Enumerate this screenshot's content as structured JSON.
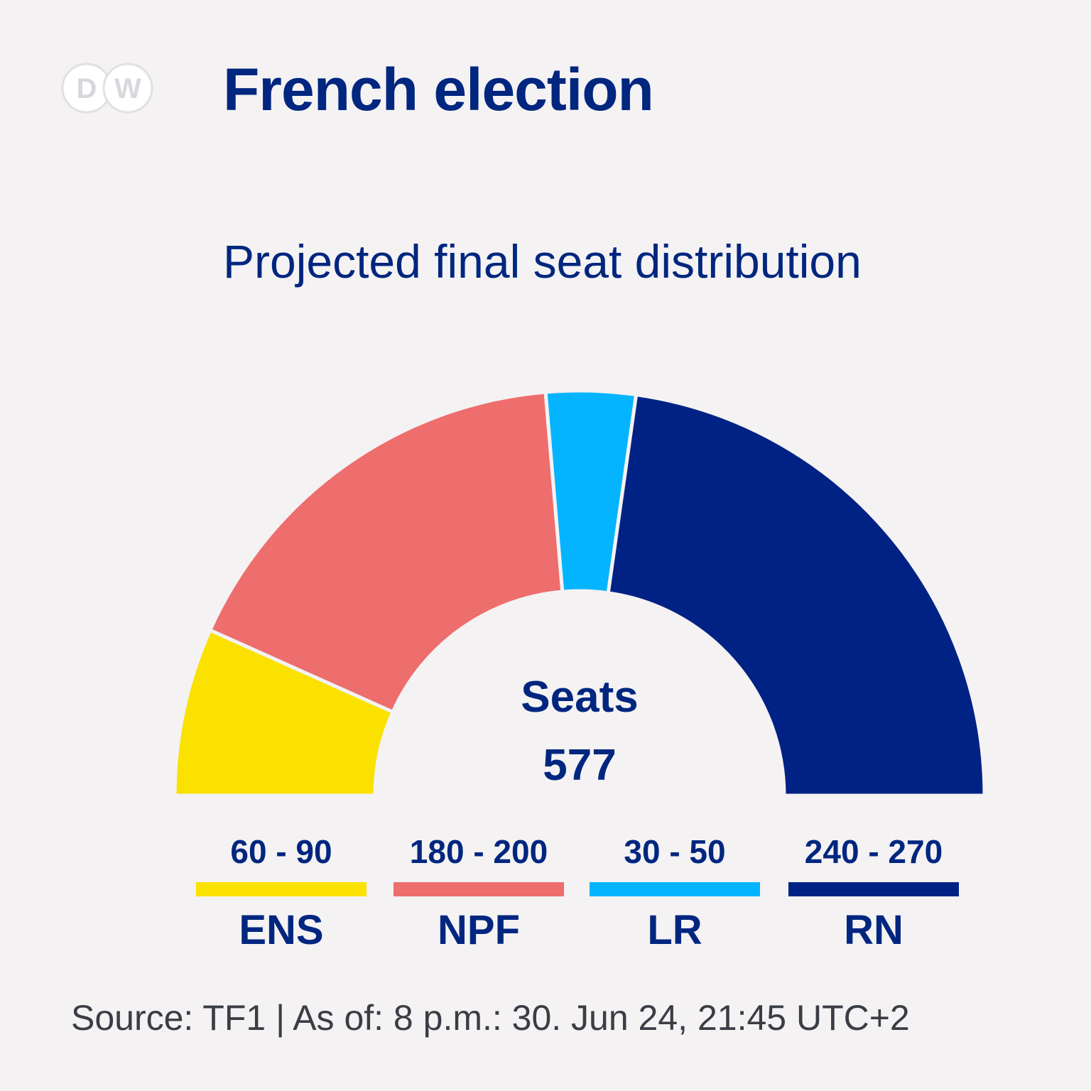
{
  "header": {
    "logo_text": "DW",
    "title": "French election",
    "subtitle": "Projected final seat distribution"
  },
  "center": {
    "label": "Seats",
    "total": "577"
  },
  "source": "Source: TF1 | As of: 8 p.m.: 30. Jun 24, 21:45 UTC+2",
  "chart_data": {
    "type": "pie",
    "subtype": "semicircle-donut",
    "total_seats": 577,
    "series": [
      {
        "name": "ENS",
        "range": "60 - 90",
        "min": 60,
        "max": 90,
        "color": "#fae100"
      },
      {
        "name": "NPF",
        "range": "180 - 200",
        "min": 180,
        "max": 200,
        "color": "#ee6d6d"
      },
      {
        "name": "LR",
        "range": "30 - 50",
        "min": 30,
        "max": 50,
        "color": "#05b4ff"
      },
      {
        "name": "RN",
        "range": "240 - 270",
        "min": 240,
        "max": 270,
        "color": "#002284"
      }
    ],
    "legend_placement": "bottom"
  }
}
